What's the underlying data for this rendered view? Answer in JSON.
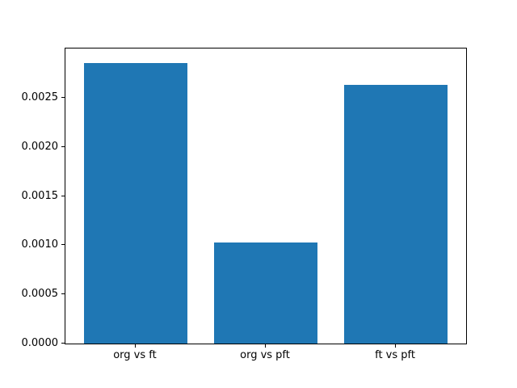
{
  "chart_data": {
    "type": "bar",
    "categories": [
      "org vs ft",
      "org vs pft",
      "ft vs pft"
    ],
    "values": [
      0.002855,
      0.001025,
      0.002634
    ],
    "title": "",
    "xlabel": "",
    "ylabel": "",
    "ylim": [
      0,
      0.003
    ],
    "ytick_values": [
      0.0,
      0.0005,
      0.001,
      0.0015,
      0.002,
      0.0025
    ],
    "ytick_labels": [
      "0.0000",
      "0.0005",
      "0.0010",
      "0.0015",
      "0.0020",
      "0.0025"
    ],
    "bar_color": "#1f77b4",
    "bar_width_fraction": 0.8,
    "grid": false,
    "legend": null,
    "background_color": "#ffffff",
    "spine_color": "#000000"
  }
}
